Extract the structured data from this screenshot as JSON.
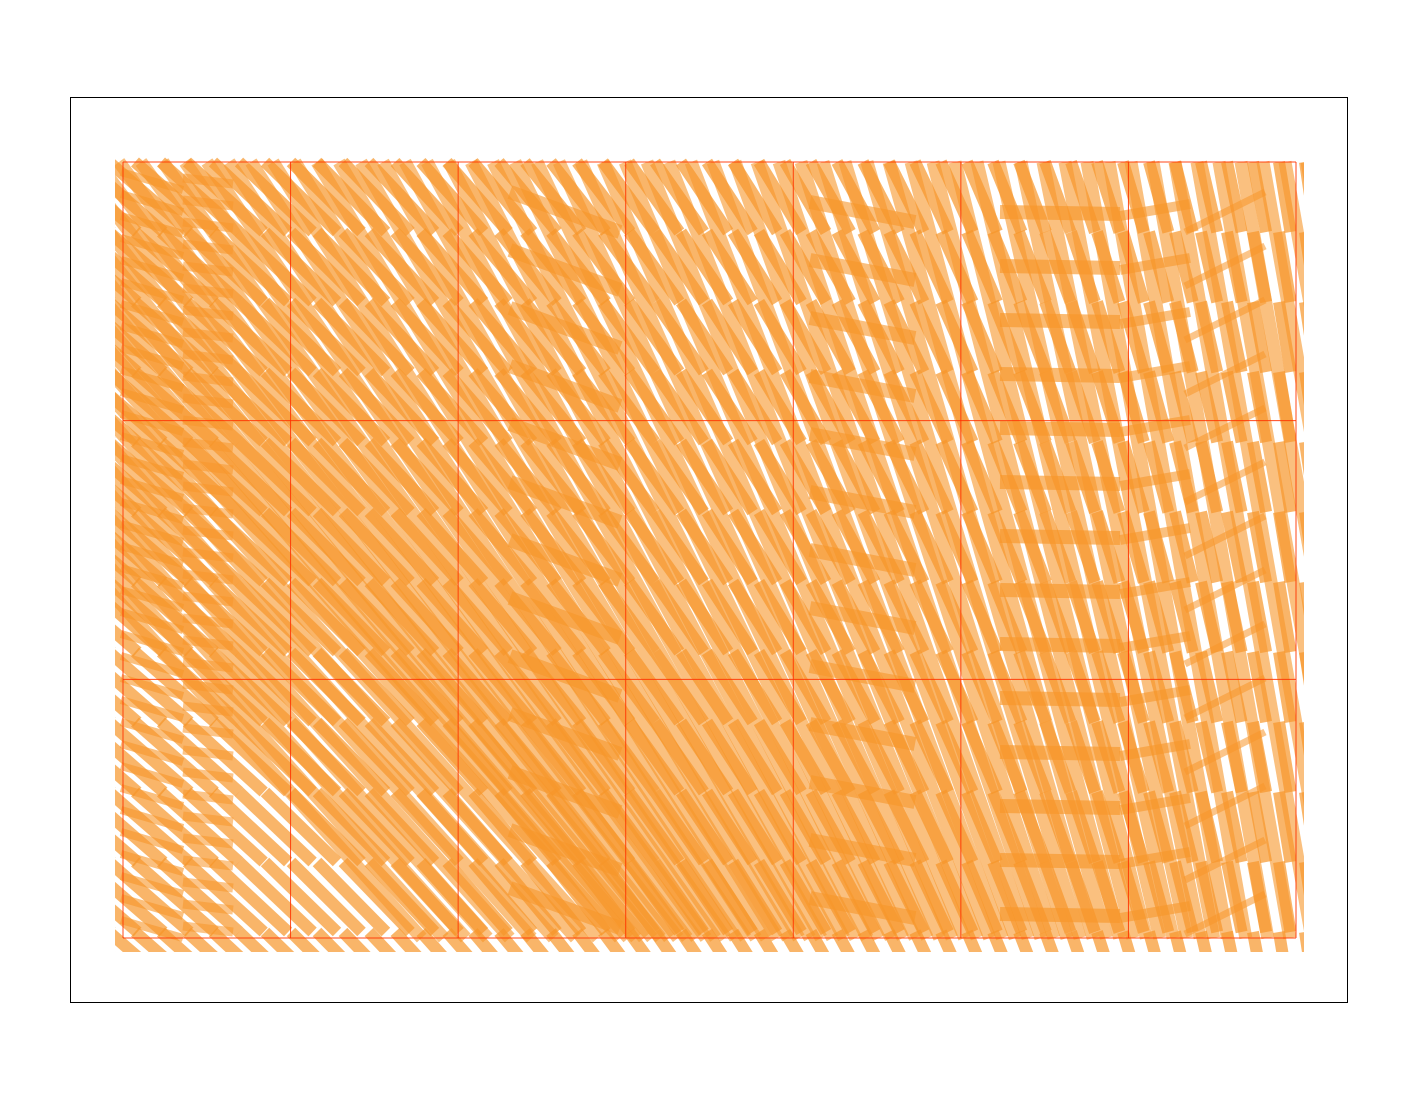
{
  "colors": {
    "background": "#ffffff",
    "frame": "#000000",
    "grid": "#ff3300",
    "stroke_fill": "#f7962a"
  },
  "pattern": {
    "description_visible_text": "",
    "grid_columns": 7,
    "grid_rows": 3
  }
}
